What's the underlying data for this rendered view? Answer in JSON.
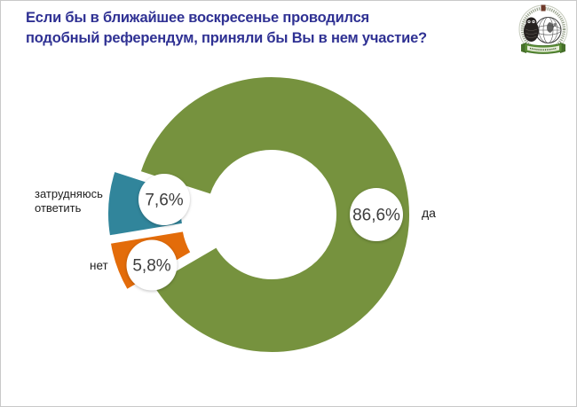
{
  "title": {
    "lines": [
      "Если бы в ближайшее воскресенье проводился",
      "подобный референдум, приняли бы Вы в нем участие?"
    ],
    "color": "#2F3193"
  },
  "logo": {
    "name": "university-emblem"
  },
  "chart_data": {
    "type": "pie",
    "variant": "exploded-donut",
    "title": "Если бы в ближайшее воскресенье проводился подобный референдум, приняли бы Вы в нем участие?",
    "unit": "%",
    "slices": [
      {
        "label": "да",
        "value": 86.6,
        "display": "86,6%",
        "color": "#76923E",
        "exploded": false,
        "label_position": "right"
      },
      {
        "label": "нет",
        "value": 5.8,
        "display": "5,8%",
        "color": "#E36C0A",
        "exploded": true,
        "label_position": "left"
      },
      {
        "label": "затрудняюсь ответить",
        "value": 7.6,
        "display": "7,6%",
        "color": "#31859B",
        "exploded": true,
        "label_position": "left"
      }
    ],
    "start_angle_deg": 162,
    "direction": "clockwise",
    "donut": true,
    "legend": "none"
  }
}
